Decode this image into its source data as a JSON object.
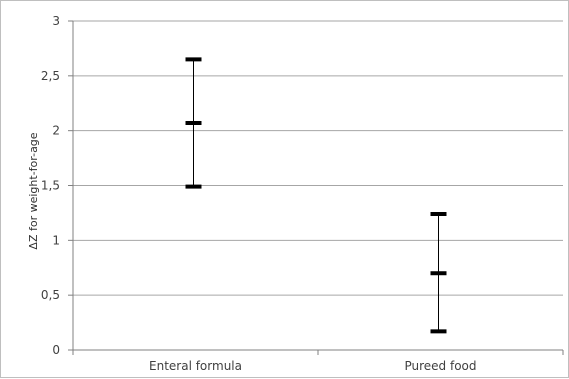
{
  "chart_data": {
    "type": "error-bar",
    "title": "",
    "xlabel": "",
    "ylabel": "ΔZ for weight-for-age",
    "categories": [
      "Enteral formula",
      "Pureed food"
    ],
    "series": [
      {
        "mean": [
          2.07,
          0.7
        ],
        "upper": [
          2.65,
          1.24
        ],
        "lower": [
          1.49,
          0.17
        ]
      }
    ],
    "ylim": [
      0,
      3
    ],
    "yticks": [
      0,
      0.5,
      1,
      1.5,
      2,
      2.5,
      3
    ],
    "ytick_labels": [
      "0",
      "0,5",
      "1",
      "1,5",
      "2",
      "2,5",
      "3"
    ],
    "grid": true,
    "legend": "none",
    "colors": {
      "marker": "#000000",
      "gridline": "#a6a6a6",
      "axis": "#808080",
      "tick_text": "#404040",
      "border": "#bfbfbf"
    }
  }
}
